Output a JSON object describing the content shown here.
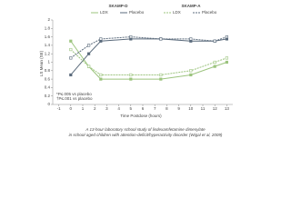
{
  "chart_data": {
    "type": "line",
    "legend_titles": [
      "SKAMP-D",
      "SKAMP-A"
    ],
    "x": [
      0,
      1.5,
      2.5,
      5,
      7.5,
      10,
      12,
      13
    ],
    "series": [
      {
        "name": "LDX",
        "color": "#9cc47e",
        "dash": false,
        "values": [
          1.5,
          0.9,
          0.6,
          0.6,
          0.6,
          0.7,
          0.9,
          1.0
        ]
      },
      {
        "name": "Placebo",
        "color": "#5b6b7c",
        "dash": false,
        "values": [
          0.7,
          1.2,
          1.5,
          1.55,
          1.55,
          1.5,
          1.5,
          1.55
        ]
      },
      {
        "name": "LDX",
        "color": "#9cc47e",
        "dash": true,
        "values": [
          1.3,
          0.9,
          0.7,
          0.7,
          0.7,
          0.8,
          1.0,
          1.1
        ]
      },
      {
        "name": "Placebo",
        "color": "#5b6b7c",
        "dash": true,
        "values": [
          1.1,
          1.4,
          1.55,
          1.6,
          1.55,
          1.55,
          1.5,
          1.6
        ]
      }
    ],
    "xlabel": "Time Postdose (hours)",
    "ylabel": "LS Mean (SE)",
    "xlim": [
      -1.5,
      13.5
    ],
    "xticks": [
      -1,
      0,
      1,
      2,
      3,
      4,
      5,
      6,
      7,
      8,
      9,
      10,
      11,
      12,
      13
    ],
    "ylim": [
      0,
      2
    ],
    "yticks": [
      0,
      0.2,
      0.4,
      0.6,
      0.8,
      1,
      1.2,
      1.4,
      1.6,
      1.8,
      2
    ],
    "footnotes": [
      "*P≤.005 vs placebo",
      "†P≤.001 vs placebo"
    ],
    "caption": [
      "A 13-hour laboratory school study of lisdexamfetamine dimesylate",
      "in school-aged children with attention-deficit/hyperactivity disorder (Wigal et al, 2009)"
    ]
  }
}
